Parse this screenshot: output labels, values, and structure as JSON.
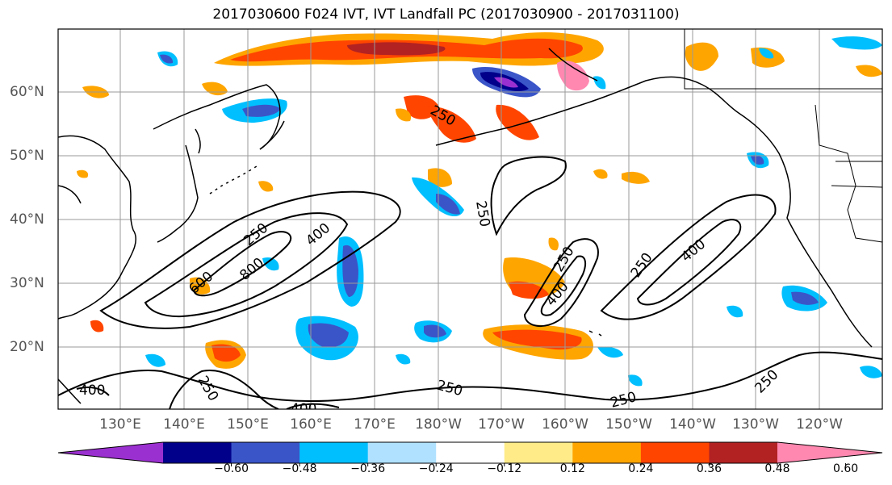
{
  "title": "2017030600 F024 IVT, IVT Landfall PC (2017030900 - 2017031100)",
  "lat_labels": [
    "60°N",
    "50°N",
    "40°N",
    "30°N",
    "20°N"
  ],
  "lon_labels": [
    "130°E",
    "140°E",
    "150°E",
    "160°E",
    "170°E",
    "180°W",
    "170°W",
    "160°W",
    "150°W",
    "140°W",
    "130°W",
    "120°W"
  ],
  "contour_labels": [
    "250",
    "250",
    "250",
    "400",
    "600",
    "800",
    "250",
    "250",
    "400",
    "250",
    "400",
    "250",
    "250",
    "250",
    "400",
    "400"
  ],
  "colorbar": {
    "ticks": [
      "−0.60",
      "−0.48",
      "−0.36",
      "−0.24",
      "−0.12",
      "0.12",
      "0.24",
      "0.36",
      "0.48",
      "0.60"
    ],
    "colors": [
      "#9b30d0",
      "#00008b",
      "#3a55c8",
      "#00bfff",
      "#b0e2ff",
      "#ffffff",
      "#ffeb88",
      "#ffa500",
      "#ff4500",
      "#b22222",
      "#ff88b0"
    ]
  },
  "colors": {
    "land_line": "#000000",
    "grid": "#9a9a9a",
    "contour": "#000000"
  }
}
